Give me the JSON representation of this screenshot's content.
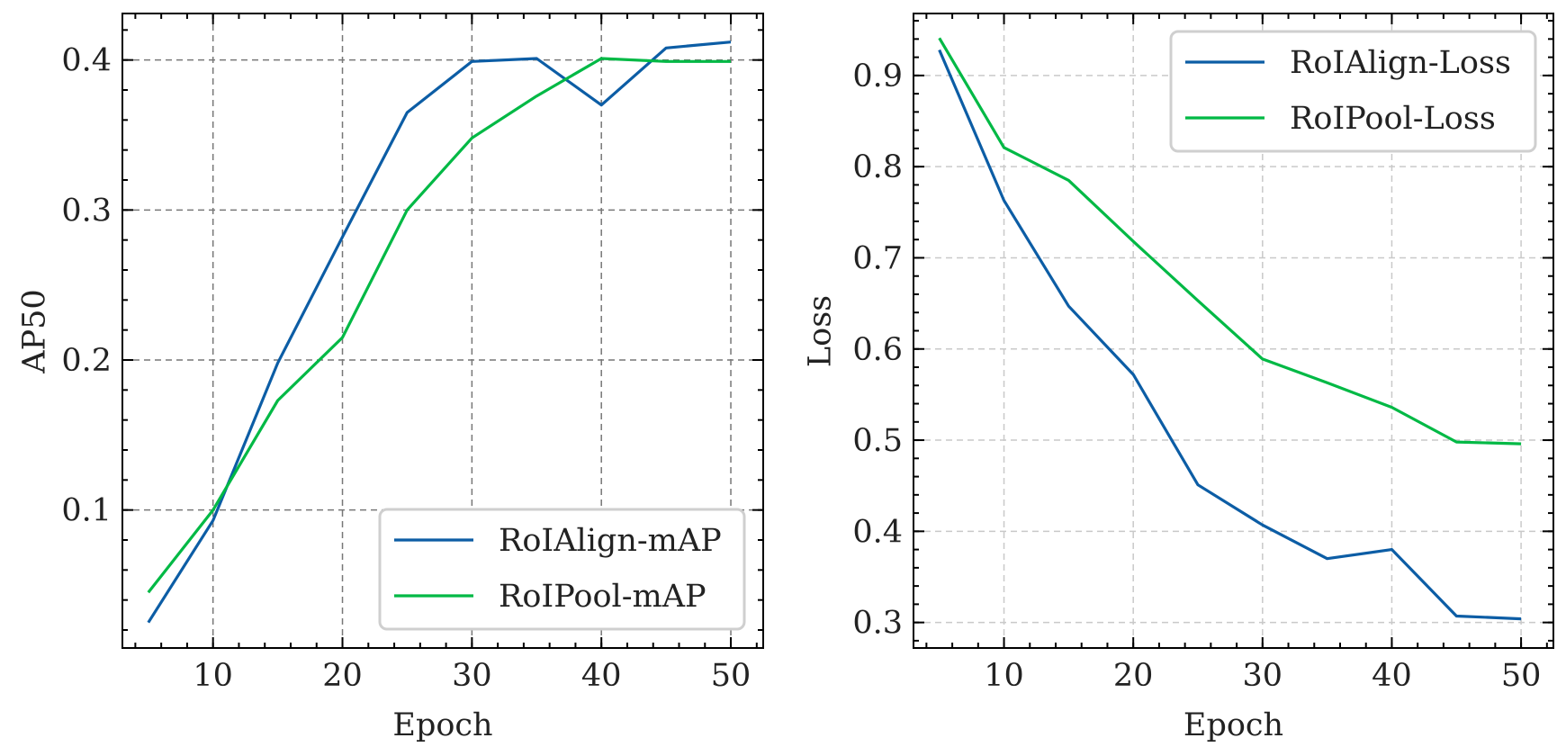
{
  "chart_data": [
    {
      "type": "line",
      "xlabel": "Epoch",
      "ylabel": "AP50",
      "xlim": [
        3,
        52.5
      ],
      "ylim": [
        0.008,
        0.431
      ],
      "xticks": [
        10,
        20,
        30,
        40,
        50
      ],
      "xtick_labels": [
        "10",
        "20",
        "30",
        "40",
        "50"
      ],
      "yticks": [
        0.1,
        0.2,
        0.3,
        0.4
      ],
      "ytick_labels": [
        "0.1",
        "0.2",
        "0.3",
        "0.4"
      ],
      "grid": true,
      "grid_style": "dark",
      "legend_position": "lower-right",
      "x": [
        5,
        10,
        15,
        20,
        25,
        30,
        35,
        40,
        45,
        50
      ],
      "series": [
        {
          "name": "RoIAlign-mAP",
          "color": "#0c5da5",
          "values": [
            0.025,
            0.093,
            0.198,
            0.282,
            0.365,
            0.399,
            0.401,
            0.37,
            0.408,
            0.412
          ]
        },
        {
          "name": "RoIPool-mAP",
          "color": "#00b945",
          "values": [
            0.045,
            0.1,
            0.173,
            0.215,
            0.3,
            0.348,
            0.376,
            0.401,
            0.399,
            0.399
          ]
        }
      ]
    },
    {
      "type": "line",
      "xlabel": "Epoch",
      "ylabel": "Loss",
      "xlim": [
        3,
        52.5
      ],
      "ylim": [
        0.272,
        0.968
      ],
      "xticks": [
        10,
        20,
        30,
        40,
        50
      ],
      "xtick_labels": [
        "10",
        "20",
        "30",
        "40",
        "50"
      ],
      "yticks": [
        0.3,
        0.4,
        0.5,
        0.6,
        0.7,
        0.8,
        0.9
      ],
      "ytick_labels": [
        "0.3",
        "0.4",
        "0.5",
        "0.6",
        "0.7",
        "0.8",
        "0.9"
      ],
      "grid": true,
      "grid_style": "light",
      "legend_position": "top-right",
      "x": [
        5,
        10,
        15,
        20,
        25,
        30,
        35,
        40,
        45,
        50
      ],
      "series": [
        {
          "name": "RoIAlign-Loss",
          "color": "#0c5da5",
          "values": [
            0.928,
            0.763,
            0.647,
            0.572,
            0.451,
            0.407,
            0.37,
            0.38,
            0.307,
            0.304
          ]
        },
        {
          "name": "RoIPool-Loss",
          "color": "#00b945",
          "values": [
            0.941,
            0.821,
            0.785,
            0.718,
            0.653,
            0.589,
            0.563,
            0.536,
            0.498,
            0.496
          ]
        }
      ]
    }
  ]
}
